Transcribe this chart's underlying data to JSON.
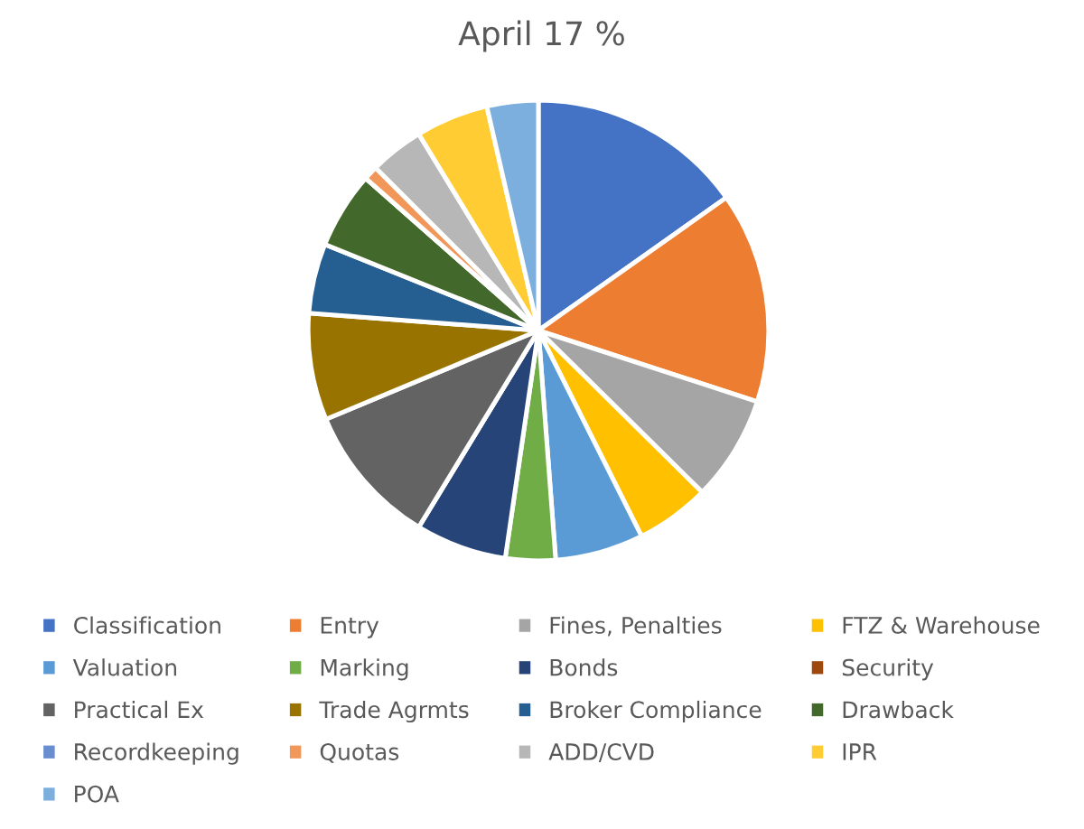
{
  "chart_data": {
    "type": "pie",
    "title": "April 17 %",
    "categories": [
      "Classification",
      "Entry",
      "Fines, Penalties",
      "FTZ & Warehouse",
      "Valuation",
      "Marking",
      "Bonds",
      "Security",
      "Practical Ex",
      "Trade Agrmts",
      "Broker Compliance",
      "Drawback",
      "Recordkeeping",
      "Quotas",
      "ADD/CVD",
      "IPR",
      "POA"
    ],
    "values": [
      15.2,
      14.8,
      7.4,
      5.2,
      6.2,
      3.5,
      6.4,
      0,
      10.0,
      7.5,
      4.9,
      5.4,
      0,
      1.0,
      3.8,
      5.1,
      3.6
    ],
    "colors": [
      "#4472c4",
      "#ed7d31",
      "#a5a5a5",
      "#ffc000",
      "#5b9bd5",
      "#70ad47",
      "#264478",
      "#9e480e",
      "#636363",
      "#997300",
      "#255e91",
      "#43682b",
      "#698ed0",
      "#f1975a",
      "#b7b7b7",
      "#ffcd33",
      "#7cafdd"
    ],
    "legend": "bottom"
  }
}
